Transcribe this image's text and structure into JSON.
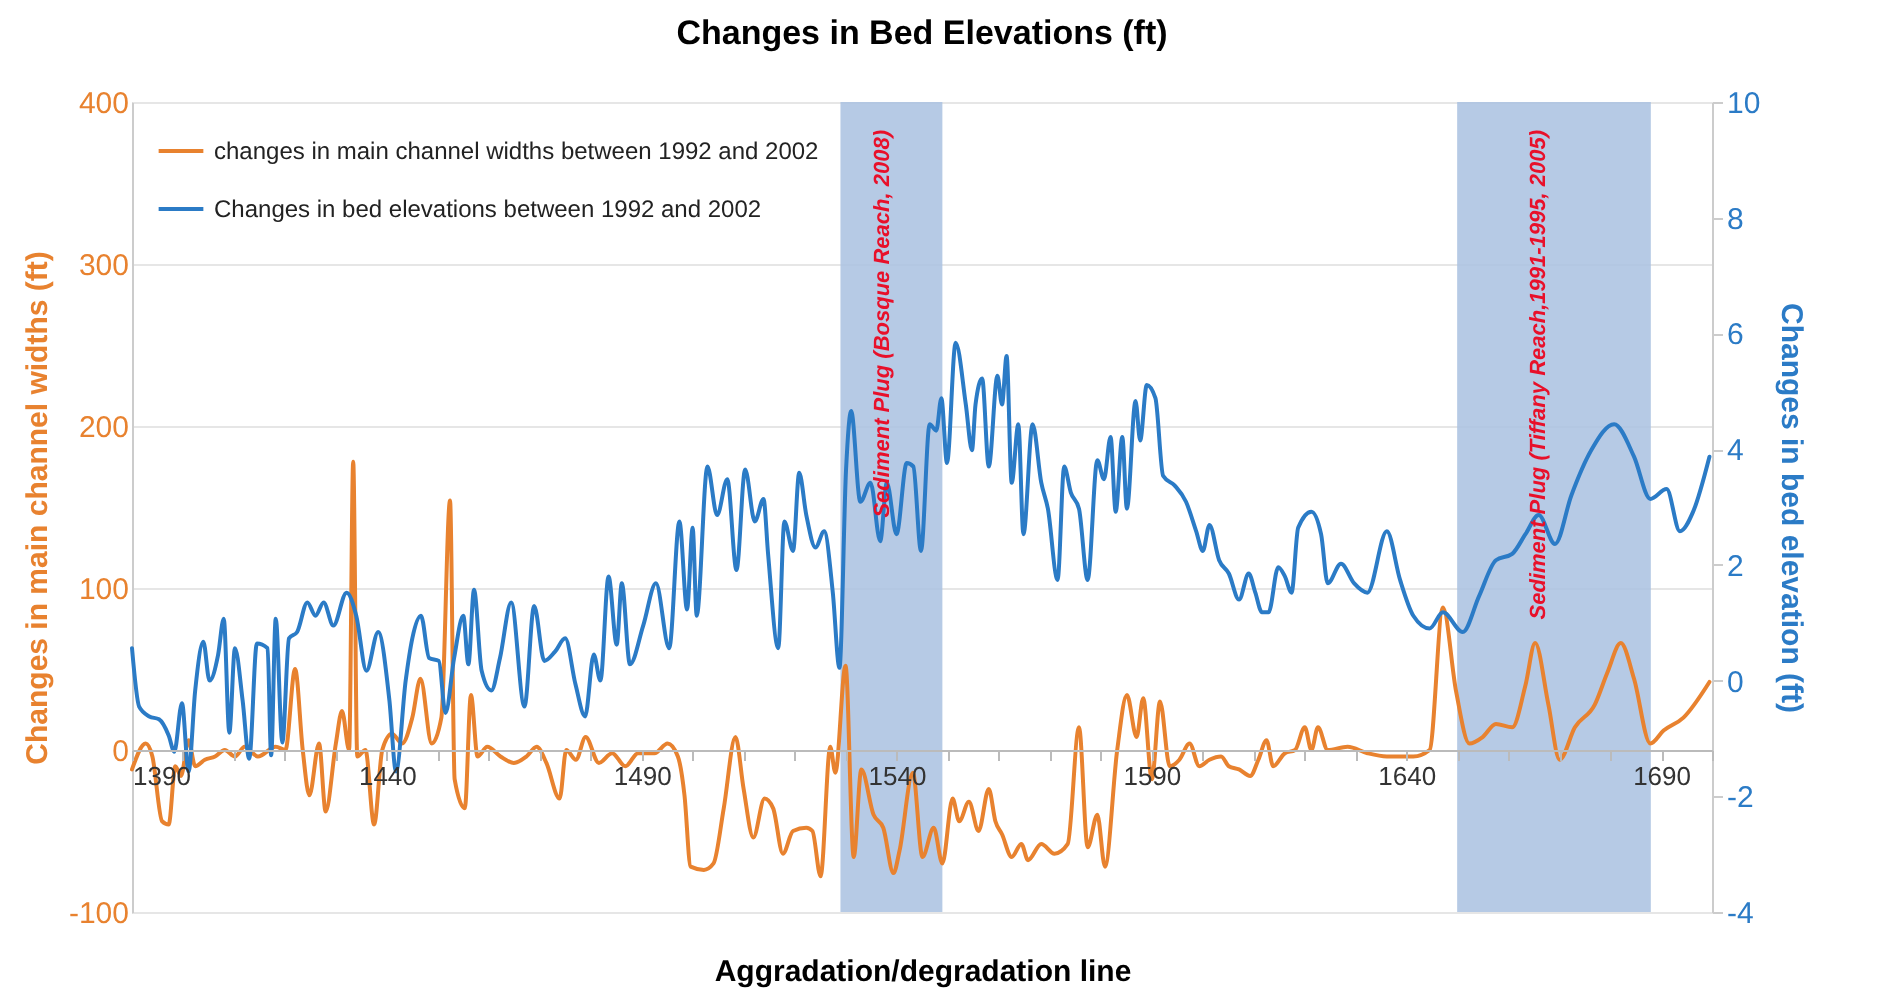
{
  "chart_data": {
    "type": "line",
    "title": "Changes in Bed Elevations (ft)",
    "xlabel": "Aggradation/degradation line",
    "ylabel": "Changes in main channel widths (ft)",
    "y2label": "Changes in bed elevation (ft)",
    "xlim": [
      1390,
      1700
    ],
    "xticks": [
      1390,
      {
        "value": 1400,
        "label": null
      },
      {
        "value": 1410,
        "label": null
      },
      {
        "value": 1420,
        "label": null
      },
      {
        "value": 1430,
        "label": null
      },
      1440,
      {
        "value": 1450,
        "label": null
      },
      {
        "value": 1460,
        "label": null
      },
      {
        "value": 1470,
        "label": null
      },
      {
        "value": 1480,
        "label": null
      },
      1490,
      {
        "value": 1500,
        "label": null
      },
      {
        "value": 1510,
        "label": null
      },
      {
        "value": 1520,
        "label": null
      },
      {
        "value": 1530,
        "label": null
      },
      1540,
      {
        "value": 1550,
        "label": null
      },
      {
        "value": 1560,
        "label": null
      },
      {
        "value": 1570,
        "label": null
      },
      {
        "value": 1580,
        "label": null
      },
      1590,
      {
        "value": 1600,
        "label": null
      },
      {
        "value": 1610,
        "label": null
      },
      {
        "value": 1620,
        "label": null
      },
      {
        "value": 1630,
        "label": null
      },
      1640,
      {
        "value": 1650,
        "label": null
      },
      {
        "value": 1660,
        "label": null
      },
      {
        "value": 1670,
        "label": null
      },
      {
        "value": 1680,
        "label": null
      },
      1690,
      {
        "value": 1700,
        "label": null
      }
    ],
    "ylim": [
      -100,
      400
    ],
    "yticks": [
      -100,
      0,
      100,
      200,
      300,
      400
    ],
    "y2lim": [
      -4,
      10
    ],
    "y2ticks": [
      -4,
      -2,
      0,
      2,
      4,
      6,
      8,
      10
    ],
    "grid": "y",
    "legend": "top left",
    "marker": "none",
    "line_style": "solid",
    "bands": [
      {
        "axis": "x",
        "from": 1529,
        "to": 1549,
        "label": "Sediment Plug (Bosque Reach, 2008)",
        "color": "#a9c1e0"
      },
      {
        "axis": "x",
        "from": 1650,
        "to": 1688,
        "label": "Sediment Plug (Tiffany  Reach,1991-1995,  2005)",
        "color": "#a9c1e0"
      }
    ],
    "series": [
      {
        "name": "changes in main channel widths between 1992 and 2002",
        "color": "#e8822f",
        "x": [
          1390,
          1392.7,
          1394,
          1395.9,
          1397.2,
          1398.5,
          1399.6,
          1401.1,
          1402.4,
          1404.3,
          1406.3,
          1408.2,
          1410.2,
          1412.1,
          1414.7,
          1418.2,
          1420.1,
          1422,
          1423.5,
          1424.8,
          1426.7,
          1428,
          1430,
          1431.2,
          1432.6,
          1433.4,
          1434.2,
          1435.8,
          1437.5,
          1439.1,
          1441,
          1443,
          1445,
          1446.6,
          1448.8,
          1450.7,
          1452.4,
          1453.3,
          1455.3,
          1456.5,
          1457.8,
          1459.7,
          1462.3,
          1464.9,
          1467.4,
          1469.4,
          1471.3,
          1473.9,
          1475.2,
          1477.1,
          1479,
          1481.6,
          1484.2,
          1486.8,
          1489.3,
          1492.5,
          1495.1,
          1497.1,
          1498.4,
          1499.6,
          1502.2,
          1504.1,
          1506.1,
          1508.4,
          1510,
          1511.9,
          1514.1,
          1515.8,
          1517.7,
          1519.7,
          1522.3,
          1523.5,
          1525.1,
          1527,
          1528,
          1530,
          1531.6,
          1533.1,
          1535.5,
          1537.4,
          1539.4,
          1540.6,
          1543.2,
          1545.1,
          1547.3,
          1549,
          1551,
          1552.3,
          1554.2,
          1556.1,
          1558.1,
          1559.4,
          1560.7,
          1562.6,
          1564.5,
          1565.8,
          1568.4,
          1571,
          1573.6,
          1575.8,
          1577.5,
          1579.4,
          1580.9,
          1583.3,
          1585.2,
          1587.1,
          1588.4,
          1590.1,
          1591.7,
          1593.6,
          1595.5,
          1597.5,
          1599.4,
          1601.4,
          1603.7,
          1605.2,
          1607.2,
          1609.4,
          1611,
          1612.6,
          1613.9,
          1616.2,
          1618.2,
          1620.1,
          1621.4,
          1622.7,
          1624.6,
          1628.5,
          1632.4,
          1636.2,
          1641.4,
          1644.6,
          1647.2,
          1649.8,
          1652.4,
          1655,
          1657.6,
          1660.8,
          1663.4,
          1665.3,
          1667.9,
          1670.1,
          1673.1,
          1677,
          1679.5,
          1682.1,
          1684.7,
          1687.9,
          1690.5,
          1694.4,
          1699.5
        ],
        "values": [
          -12,
          4,
          -4,
          -44,
          -46,
          -10,
          -16,
          6,
          -10,
          -6,
          -4,
          0,
          -4,
          2,
          -4,
          2,
          0,
          50,
          0,
          -28,
          4,
          -38,
          4,
          24,
          0,
          178,
          -4,
          0,
          -46,
          0,
          10,
          4,
          20,
          44,
          4,
          20,
          154,
          -18,
          -36,
          34,
          -4,
          2,
          -4,
          -8,
          -4,
          2,
          -8,
          -30,
          0,
          -6,
          8,
          -8,
          -2,
          -10,
          -2,
          -2,
          4,
          -4,
          -28,
          -72,
          -74,
          -70,
          -36,
          8,
          -24,
          -54,
          -30,
          -36,
          -64,
          -50,
          -48,
          -50,
          -78,
          2,
          -14,
          52,
          -66,
          -12,
          -40,
          -48,
          -76,
          -62,
          -14,
          -66,
          -48,
          -70,
          -30,
          -44,
          -32,
          -50,
          -24,
          -44,
          -52,
          -66,
          -58,
          -68,
          -58,
          -64,
          -58,
          14,
          -60,
          -40,
          -72,
          0,
          34,
          8,
          32,
          -18,
          30,
          -10,
          -6,
          4,
          -10,
          -6,
          -4,
          -10,
          -12,
          -16,
          -6,
          6,
          -10,
          -2,
          0,
          14,
          0,
          14,
          0,
          2,
          -2,
          -4,
          -4,
          0,
          88,
          36,
          4,
          8,
          16,
          14,
          40,
          66,
          28,
          -6,
          14,
          28,
          48,
          66,
          44,
          4,
          12,
          20,
          42
        ]
      },
      {
        "name": "Changes in bed elevations between 1992 and 2002",
        "color": "#2b7bc6",
        "axis": "y2",
        "x": [
          1390,
          1391.4,
          1393.4,
          1395.3,
          1397.2,
          1398.3,
          1399.8,
          1401.1,
          1402.4,
          1404,
          1405.2,
          1406.9,
          1408,
          1409.1,
          1410.2,
          1411.7,
          1413,
          1414.5,
          1416.6,
          1417.3,
          1418.2,
          1419.5,
          1420.8,
          1422.4,
          1424.4,
          1426,
          1427.6,
          1429.5,
          1432.1,
          1434,
          1436,
          1438.3,
          1440.5,
          1441.8,
          1443.7,
          1445,
          1446.7,
          1448.3,
          1450.2,
          1451.5,
          1453.2,
          1455,
          1456,
          1457.1,
          1458.6,
          1460.5,
          1462.2,
          1464.4,
          1467,
          1468.9,
          1470.9,
          1473,
          1475,
          1477,
          1478.9,
          1480.6,
          1481.9,
          1483.5,
          1485.1,
          1486.1,
          1487.7,
          1490.3,
          1492.8,
          1495.4,
          1497.4,
          1498.9,
          1500,
          1500.8,
          1502.9,
          1504.8,
          1506.8,
          1508.6,
          1510.3,
          1512.2,
          1513.9,
          1514.8,
          1516.8,
          1518,
          1519.7,
          1520.9,
          1522.3,
          1524.1,
          1525.8,
          1527.5,
          1528.8,
          1530.1,
          1531.1,
          1532.9,
          1534.9,
          1536.8,
          1538.1,
          1540,
          1542,
          1543.3,
          1544.8,
          1546.5,
          1547.8,
          1548.8,
          1549.9,
          1551.6,
          1553.6,
          1554.8,
          1555.5,
          1556.8,
          1558.1,
          1559.8,
          1560.7,
          1561.6,
          1562.6,
          1563.9,
          1564.9,
          1566.7,
          1568.4,
          1569.7,
          1571.6,
          1572.9,
          1574.2,
          1575.8,
          1577.5,
          1579.4,
          1580.7,
          1582,
          1583,
          1584.3,
          1585.2,
          1586.9,
          1587.8,
          1589.1,
          1590.8,
          1592.3,
          1594.6,
          1596.8,
          1598.8,
          1600.1,
          1601.4,
          1603.3,
          1605.2,
          1607.2,
          1609.1,
          1610.4,
          1611.7,
          1613,
          1614.9,
          1616.2,
          1617.5,
          1618.8,
          1621.4,
          1623.3,
          1624.6,
          1627.2,
          1629.8,
          1632.4,
          1636.2,
          1638.8,
          1641.4,
          1644.6,
          1647.2,
          1651.1,
          1654.3,
          1657.6,
          1660.8,
          1663.4,
          1666,
          1669.2,
          1672.4,
          1676.3,
          1680.8,
          1684.7,
          1687.9,
          1691.1,
          1693.7,
          1696.3,
          1699.5
        ],
        "values": [
          0.56,
          -0.45,
          -0.62,
          -0.67,
          -0.95,
          -1.23,
          -0.39,
          -1.57,
          -0.17,
          0.67,
          0,
          0.45,
          1.07,
          -0.9,
          0.56,
          -0.34,
          -1.35,
          0.64,
          0.56,
          -1.29,
          1.07,
          -1.07,
          0.73,
          0.84,
          1.35,
          1.12,
          1.35,
          0.95,
          1.52,
          1.12,
          0.17,
          0.84,
          -0.34,
          -1.57,
          0,
          0.73,
          1.12,
          0.39,
          0.34,
          -0.56,
          0.39,
          1.12,
          0.28,
          1.57,
          0.17,
          -0.17,
          0.39,
          1.35,
          -0.45,
          1.29,
          0.34,
          0.5,
          0.73,
          -0.06,
          -0.62,
          0.45,
          0,
          1.8,
          0.62,
          1.68,
          0.28,
          0.95,
          1.68,
          0.56,
          2.75,
          1.23,
          2.64,
          1.12,
          3.7,
          2.86,
          3.48,
          1.91,
          3.65,
          2.75,
          3.14,
          2.19,
          0.56,
          2.75,
          2.24,
          3.59,
          2.86,
          2.3,
          2.58,
          1.52,
          0.22,
          3.65,
          4.66,
          3.09,
          3.42,
          2.41,
          3.42,
          2.53,
          3.76,
          3.7,
          2.24,
          4.43,
          4.32,
          4.88,
          3.76,
          5.84,
          4.77,
          3.98,
          4.77,
          5.22,
          3.7,
          5.27,
          4.77,
          5.61,
          3.42,
          4.43,
          2.53,
          4.43,
          3.42,
          2.97,
          1.74,
          3.7,
          3.25,
          2.97,
          1.74,
          3.81,
          3.48,
          4.21,
          2.92,
          4.21,
          2.97,
          4.83,
          4.15,
          5.11,
          4.88,
          3.54,
          3.37,
          3.09,
          2.58,
          2.24,
          2.69,
          2.08,
          1.85,
          1.4,
          1.85,
          1.52,
          1.18,
          1.18,
          1.96,
          1.8,
          1.52,
          2.64,
          2.92,
          2.53,
          1.68,
          2.02,
          1.68,
          1.52,
          2.58,
          1.74,
          1.12,
          0.9,
          1.18,
          0.84,
          1.46,
          2.08,
          2.19,
          2.53,
          2.86,
          2.36,
          3.2,
          3.98,
          4.43,
          3.87,
          3.14,
          3.31,
          2.58,
          2.92,
          3.87
        ]
      }
    ]
  }
}
